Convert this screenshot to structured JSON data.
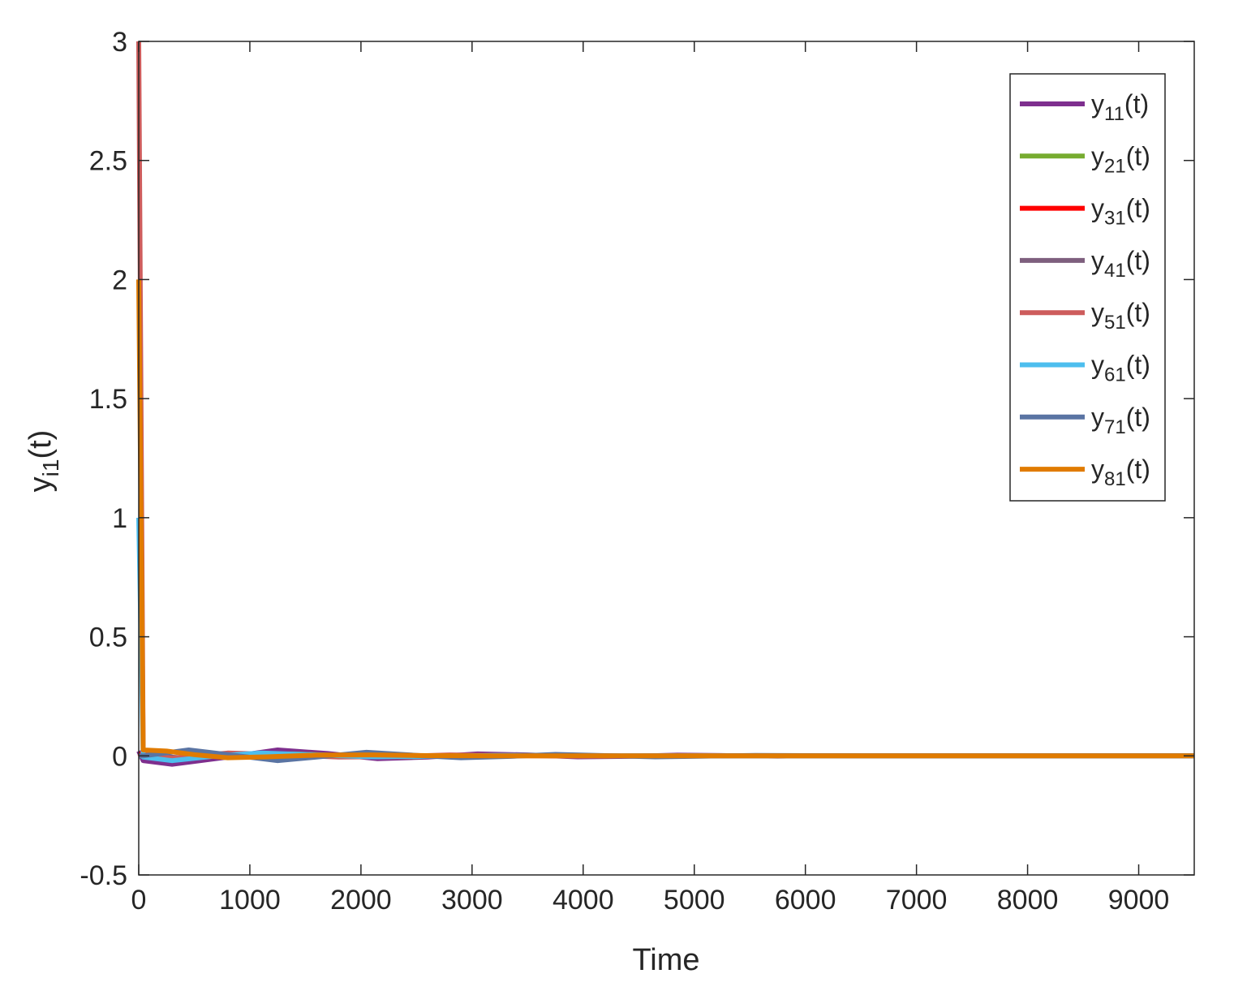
{
  "chart_data": {
    "type": "line",
    "title": "",
    "xlabel": "Time",
    "ylabel_main": "y",
    "ylabel_sub": "i1",
    "ylabel_tail": "(t)",
    "xlim": [
      0,
      9500
    ],
    "ylim": [
      -0.5,
      3
    ],
    "x_ticks": [
      0,
      1000,
      2000,
      3000,
      4000,
      5000,
      6000,
      7000,
      8000,
      9000
    ],
    "x_tick_labels": [
      "0",
      "1000",
      "2000",
      "3000",
      "4000",
      "5000",
      "6000",
      "7000",
      "8000",
      "9000"
    ],
    "y_ticks": [
      -0.5,
      0,
      0.5,
      1,
      1.5,
      2,
      2.5,
      3
    ],
    "y_tick_labels": [
      "-0.5",
      "0",
      "0.5",
      "1",
      "1.5",
      "2",
      "2.5",
      "3"
    ],
    "grid": false,
    "legend_position": "top-right",
    "series": [
      {
        "name": "y11(t)",
        "legend_main": "y",
        "legend_sub": "11",
        "legend_tail": "(t)",
        "color": "#7E2F8E",
        "x": [
          0,
          40,
          300,
          800,
          1250,
          1700,
          2150,
          2600,
          3050,
          3500,
          3950,
          4400,
          4850,
          5300,
          5750,
          6200,
          6650,
          7100,
          7550,
          8000,
          8450,
          8900,
          9500
        ],
        "y": [
          0.02,
          -0.02,
          -0.035,
          -0.005,
          0.025,
          0.01,
          -0.012,
          -0.005,
          0.008,
          0.004,
          -0.004,
          -0.002,
          0.003,
          0.001,
          -0.001,
          0.001,
          0.0,
          0.0,
          0.0,
          0.0,
          0.0,
          0.0,
          0.0
        ]
      },
      {
        "name": "y21(t)",
        "legend_main": "y",
        "legend_sub": "21",
        "legend_tail": "(t)",
        "color": "#77AC30",
        "x": [
          0,
          40,
          400,
          900,
          1400,
          1900,
          2400,
          3000,
          3600,
          4200,
          5000,
          6000,
          7000,
          8000,
          9500
        ],
        "y": [
          0.0,
          0.0,
          -0.01,
          0.005,
          0.008,
          0.0,
          -0.004,
          0.002,
          0.002,
          -0.001,
          0.0,
          0.0,
          0.0,
          0.0,
          0.0
        ]
      },
      {
        "name": "y31(t)",
        "legend_main": "y",
        "legend_sub": "31",
        "legend_tail": "(t)",
        "color": "#FF0000",
        "x": [
          0,
          40,
          400,
          900,
          1400,
          1900,
          2400,
          3000,
          3600,
          4200,
          5000,
          6000,
          7000,
          8000,
          9500
        ],
        "y": [
          0.01,
          0.0,
          -0.01,
          0.006,
          0.006,
          -0.002,
          -0.003,
          0.002,
          0.001,
          -0.001,
          0.0,
          0.0,
          0.0,
          0.0,
          0.0
        ]
      },
      {
        "name": "y41(t)",
        "legend_main": "y",
        "legend_sub": "41",
        "legend_tail": "(t)",
        "color": "#7E5F7E",
        "x": [
          0,
          40,
          400,
          900,
          1400,
          1900,
          2400,
          3000,
          3600,
          4200,
          5000,
          6000,
          7000,
          8000,
          9500
        ],
        "y": [
          0.0,
          0.0,
          -0.008,
          0.004,
          0.007,
          0.0,
          -0.003,
          0.001,
          0.002,
          0.0,
          0.0,
          0.0,
          0.0,
          0.0,
          0.0
        ]
      },
      {
        "name": "y51(t)",
        "legend_main": "y",
        "legend_sub": "51",
        "legend_tail": "(t)",
        "color": "#CD5C5C",
        "x": [
          0,
          40,
          300,
          800,
          1300,
          1800,
          2300,
          2800,
          3300,
          4000,
          5000,
          6000,
          7000,
          8000,
          9500
        ],
        "y": [
          3.0,
          0.01,
          -0.01,
          0.012,
          0.005,
          -0.005,
          -0.003,
          0.004,
          0.001,
          -0.001,
          0.0,
          0.0,
          0.0,
          0.0,
          0.0
        ]
      },
      {
        "name": "y61(t)",
        "legend_main": "y",
        "legend_sub": "61",
        "legend_tail": "(t)",
        "color": "#4DBEEE",
        "x": [
          0,
          40,
          300,
          700,
          1100,
          1600,
          2100,
          2600,
          3200,
          3800,
          4500,
          5500,
          6500,
          7500,
          9500
        ],
        "y": [
          1.0,
          -0.005,
          -0.02,
          0.0,
          0.012,
          0.004,
          -0.004,
          -0.002,
          0.002,
          0.001,
          0.0,
          0.0,
          0.0,
          0.0,
          0.0
        ]
      },
      {
        "name": "y71(t)",
        "legend_main": "y",
        "legend_sub": "71",
        "legend_tail": "(t)",
        "color": "#5A74A3",
        "x": [
          0,
          40,
          450,
          900,
          1250,
          1600,
          2050,
          2500,
          2900,
          3350,
          3750,
          4200,
          4650,
          5100,
          5550,
          6000,
          6500,
          7000,
          8000,
          9500
        ],
        "y": [
          0.0,
          0.0,
          0.025,
          0.0,
          -0.02,
          -0.005,
          0.015,
          0.002,
          -0.008,
          -0.002,
          0.006,
          0.001,
          -0.004,
          -0.001,
          0.002,
          0.001,
          0.0,
          0.0,
          0.0,
          0.0
        ]
      },
      {
        "name": "y81(t)",
        "legend_main": "y",
        "legend_sub": "81",
        "legend_tail": "(t)",
        "color": "#E07B00",
        "x": [
          0,
          40,
          250,
          500,
          800,
          1150,
          1600,
          2100,
          2600,
          3200,
          3800,
          4500,
          5500,
          6500,
          7500,
          8500,
          9500
        ],
        "y": [
          2.0,
          0.025,
          0.02,
          0.005,
          -0.008,
          -0.004,
          0.003,
          0.004,
          0.001,
          0.0,
          0.0,
          0.0,
          0.0,
          0.0,
          0.0,
          0.0,
          0.0
        ]
      }
    ]
  }
}
